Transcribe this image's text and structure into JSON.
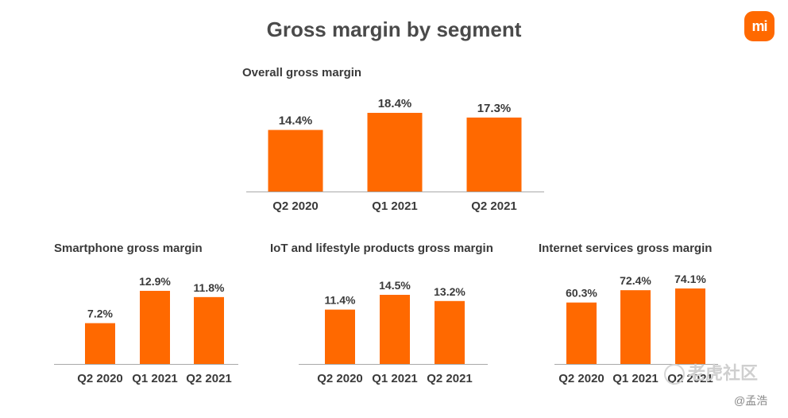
{
  "page": {
    "title": "Gross margin by segment",
    "logo_text": "mi",
    "accent_color": "#ff6900",
    "watermark_main": "老虎社区",
    "watermark_sub": "@孟浩"
  },
  "chart_data": [
    {
      "type": "bar",
      "title": "Overall gross margin",
      "categories": [
        "Q2 2020",
        "Q1 2021",
        "Q2 2021"
      ],
      "values": [
        14.4,
        18.4,
        17.3
      ],
      "value_labels": [
        "14.4%",
        "18.4%",
        "17.3%"
      ],
      "unit": "%",
      "ylim": [
        0,
        18.4
      ],
      "color": "#ff6900",
      "grid": false
    },
    {
      "type": "bar",
      "title": "Smartphone gross margin",
      "categories": [
        "Q2 2020",
        "Q1 2021",
        "Q2 2021"
      ],
      "values": [
        7.2,
        12.9,
        11.8
      ],
      "value_labels": [
        "7.2%",
        "12.9%",
        "11.8%"
      ],
      "unit": "%",
      "ylim": [
        0,
        12.9
      ],
      "color": "#ff6900",
      "grid": false
    },
    {
      "type": "bar",
      "title": "IoT and lifestyle products gross margin",
      "categories": [
        "Q2 2020",
        "Q1 2021",
        "Q2 2021"
      ],
      "values": [
        11.4,
        14.5,
        13.2
      ],
      "value_labels": [
        "11.4%",
        "14.5%",
        "13.2%"
      ],
      "unit": "%",
      "ylim": [
        0,
        14.5
      ],
      "color": "#ff6900",
      "grid": false
    },
    {
      "type": "bar",
      "title": "Internet services gross margin",
      "categories": [
        "Q2 2020",
        "Q1 2021",
        "Q2 2021"
      ],
      "values": [
        60.3,
        72.4,
        74.1
      ],
      "value_labels": [
        "60.3%",
        "72.4%",
        "74.1%"
      ],
      "unit": "%",
      "ylim": [
        0,
        74.1
      ],
      "color": "#ff6900",
      "grid": false
    }
  ]
}
